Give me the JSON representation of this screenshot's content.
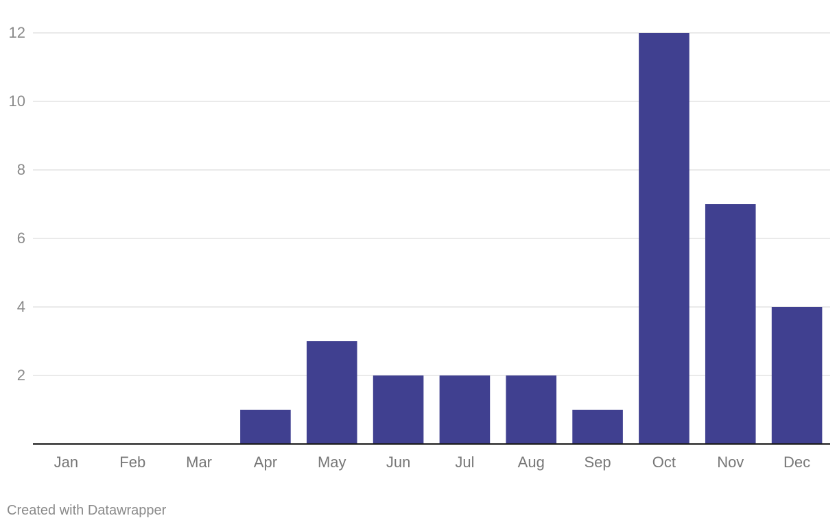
{
  "chart_data": {
    "type": "bar",
    "categories": [
      "Jan",
      "Feb",
      "Mar",
      "Apr",
      "May",
      "Jun",
      "Jul",
      "Aug",
      "Sep",
      "Oct",
      "Nov",
      "Dec"
    ],
    "values": [
      0,
      0,
      0,
      1,
      3,
      2,
      2,
      2,
      1,
      12,
      7,
      4
    ],
    "ylim": [
      0,
      12
    ],
    "yticks": [
      2,
      4,
      6,
      8,
      10,
      12
    ],
    "grid": true,
    "colors": {
      "bar": "#404090",
      "grid": "#e3e3e3",
      "baseline": "#1a1a1a",
      "tick_label": "#8a8a8a",
      "category_label": "#777777"
    }
  },
  "footer": {
    "credit": "Created with Datawrapper"
  }
}
